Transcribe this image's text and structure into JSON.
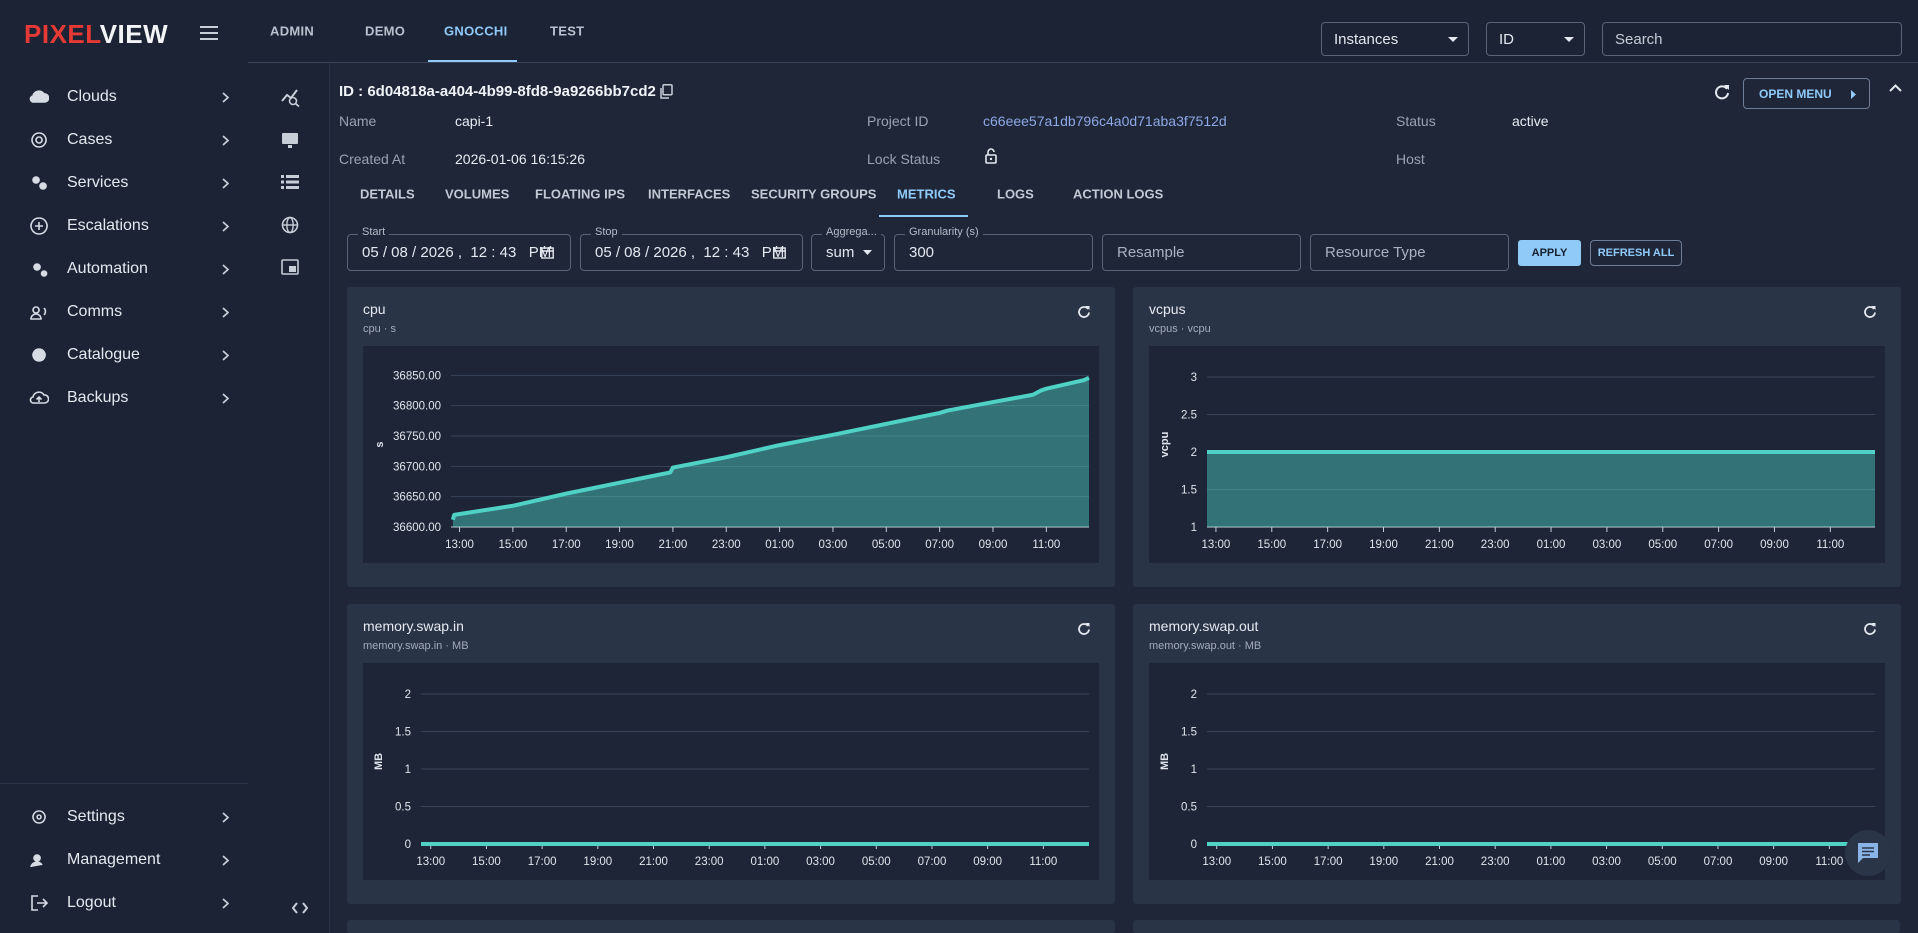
{
  "sidebar": {
    "logo": [
      "PIXEL",
      "VIEW"
    ],
    "menu": [
      "Clouds",
      "Cases",
      "Services",
      "Escalations",
      "Automation",
      "Comms",
      "Catalogue",
      "Backups"
    ],
    "bottom_menu": [
      "Settings",
      "Management",
      "Logout"
    ]
  },
  "topbar": {
    "tabs": [
      "ADMIN",
      "DEMO",
      "GNOCCHI",
      "TEST"
    ],
    "select_type": "Instances",
    "select_field": "ID",
    "search_placeholder": "Search"
  },
  "instance": {
    "id_line": "ID : 6d04818a-a404-4b99-8fd8-9a9266bb7cd2",
    "open_menu": "OPEN MENU",
    "fields": [
      {
        "label": "Name",
        "value": "capi-1"
      },
      {
        "label": "Project ID",
        "value": "c66eee57a1db796c4a0d71aba3f7512d"
      },
      {
        "label": "Status",
        "value": "active"
      },
      {
        "label": "Created At",
        "value": "2026-01-06 16:15:26"
      },
      {
        "label": "Lock Status"
      },
      {
        "label": "Host"
      }
    ],
    "tabs": [
      "DETAILS",
      "VOLUMES",
      "FLOATING IPS",
      "INTERFACES",
      "SECURITY GROUPS",
      "METRICS",
      "LOGS",
      "ACTION LOGS"
    ]
  },
  "filters": {
    "start_label": "Start",
    "start_value": "05 / 08 / 2026 ,  12 : 43   PM",
    "stop_label": "Stop",
    "stop_value": "05 / 08 / 2026 ,  12 : 43   PM",
    "aggregation_label": "Aggrega...",
    "aggregation_value": "sum",
    "granularity_label": "Granularity (s)",
    "granularity_value": "300",
    "resample_placeholder": "Resample",
    "resource_type_placeholder": "Resource Type",
    "apply": "APPLY",
    "refresh_all": "REFRESH ALL"
  },
  "chart_data": [
    {
      "type": "area",
      "title": "cpu",
      "subtitle": "cpu · s",
      "y_label": "s",
      "color": "#4fd1c5",
      "grid": true,
      "x": [
        12.75,
        12.8,
        15,
        17,
        19,
        20.9,
        21,
        23,
        25,
        27,
        29,
        31,
        31.3,
        33,
        34.5,
        34.8,
        35,
        36.4,
        36.6
      ],
      "values": [
        36612,
        36620,
        36635,
        36655,
        36673,
        36690,
        36698,
        36715,
        36735,
        36752,
        36770,
        36788,
        36792,
        36806,
        36818,
        36825,
        36828,
        36842,
        36846
      ],
      "xlim": [
        12.68,
        36.6
      ],
      "xticks": [
        {
          "value": 13,
          "label": "13:00"
        },
        {
          "value": 15,
          "label": "15:00"
        },
        {
          "value": 17,
          "label": "17:00"
        },
        {
          "value": 19,
          "label": "19:00"
        },
        {
          "value": 21,
          "label": "21:00"
        },
        {
          "value": 23,
          "label": "23:00"
        },
        {
          "value": 25,
          "label": "01:00"
        },
        {
          "value": 27,
          "label": "03:00"
        },
        {
          "value": 29,
          "label": "05:00"
        },
        {
          "value": 31,
          "label": "07:00"
        },
        {
          "value": 33,
          "label": "09:00"
        },
        {
          "value": 35,
          "label": "11:00"
        }
      ],
      "ylim": [
        36600,
        36872
      ],
      "yticks": [
        {
          "value": 36600,
          "label": "36600.00"
        },
        {
          "value": 36650,
          "label": "36650.00"
        },
        {
          "value": 36700,
          "label": "36700.00"
        },
        {
          "value": 36750,
          "label": "36750.00"
        },
        {
          "value": 36800,
          "label": "36800.00"
        },
        {
          "value": 36850,
          "label": "36850.00"
        }
      ]
    },
    {
      "type": "area",
      "title": "vcpus",
      "subtitle": "vcpus · vcpu",
      "y_label": "vcpu",
      "color": "#4fd1c5",
      "grid": true,
      "x": [
        12.68,
        36.6
      ],
      "values": [
        2,
        2
      ],
      "xlim": [
        12.68,
        36.6
      ],
      "xticks": [
        {
          "value": 13,
          "label": "13:00"
        },
        {
          "value": 15,
          "label": "15:00"
        },
        {
          "value": 17,
          "label": "17:00"
        },
        {
          "value": 19,
          "label": "19:00"
        },
        {
          "value": 21,
          "label": "21:00"
        },
        {
          "value": 23,
          "label": "23:00"
        },
        {
          "value": 25,
          "label": "01:00"
        },
        {
          "value": 27,
          "label": "03:00"
        },
        {
          "value": 29,
          "label": "05:00"
        },
        {
          "value": 31,
          "label": "07:00"
        },
        {
          "value": 33,
          "label": "09:00"
        },
        {
          "value": 35,
          "label": "11:00"
        }
      ],
      "ylim": [
        1,
        3.2
      ],
      "yticks": [
        1,
        1.5,
        2,
        2.5,
        3
      ]
    },
    {
      "type": "area",
      "title": "memory.swap.in",
      "subtitle": "memory.swap.in · MB",
      "y_label": "MB",
      "color": "#4fd1c5",
      "grid": true,
      "x": [
        12.65,
        36.64
      ],
      "values": [
        0,
        0
      ],
      "xlim": [
        12.65,
        36.64
      ],
      "xticks": [
        {
          "value": 13,
          "label": "13:00"
        },
        {
          "value": 15,
          "label": "15:00"
        },
        {
          "value": 17,
          "label": "17:00"
        },
        {
          "value": 19,
          "label": "19:00"
        },
        {
          "value": 21,
          "label": "21:00"
        },
        {
          "value": 23,
          "label": "23:00"
        },
        {
          "value": 25,
          "label": "01:00"
        },
        {
          "value": 27,
          "label": "03:00"
        },
        {
          "value": 29,
          "label": "05:00"
        },
        {
          "value": 31,
          "label": "07:00"
        },
        {
          "value": 33,
          "label": "09:00"
        },
        {
          "value": 35,
          "label": "11:00"
        }
      ],
      "ylim": [
        0,
        2.2
      ],
      "yticks": [
        0,
        0.5,
        1,
        1.5,
        2
      ]
    },
    {
      "type": "area",
      "title": "memory.swap.out",
      "subtitle": "memory.swap.out · MB",
      "y_label": "MB",
      "color": "#4fd1c5",
      "grid": true,
      "x": [
        12.65,
        36.64
      ],
      "values": [
        0,
        0
      ],
      "xlim": [
        12.65,
        36.64
      ],
      "xticks": [
        {
          "value": 13,
          "label": "13:00"
        },
        {
          "value": 15,
          "label": "15:00"
        },
        {
          "value": 17,
          "label": "17:00"
        },
        {
          "value": 19,
          "label": "19:00"
        },
        {
          "value": 21,
          "label": "21:00"
        },
        {
          "value": 23,
          "label": "23:00"
        },
        {
          "value": 25,
          "label": "01:00"
        },
        {
          "value": 27,
          "label": "03:00"
        },
        {
          "value": 29,
          "label": "05:00"
        },
        {
          "value": 31,
          "label": "07:00"
        },
        {
          "value": 33,
          "label": "09:00"
        },
        {
          "value": 35,
          "label": "11:00"
        }
      ],
      "ylim": [
        0,
        2.2
      ],
      "yticks": [
        0,
        0.5,
        1,
        1.5,
        2
      ]
    }
  ]
}
